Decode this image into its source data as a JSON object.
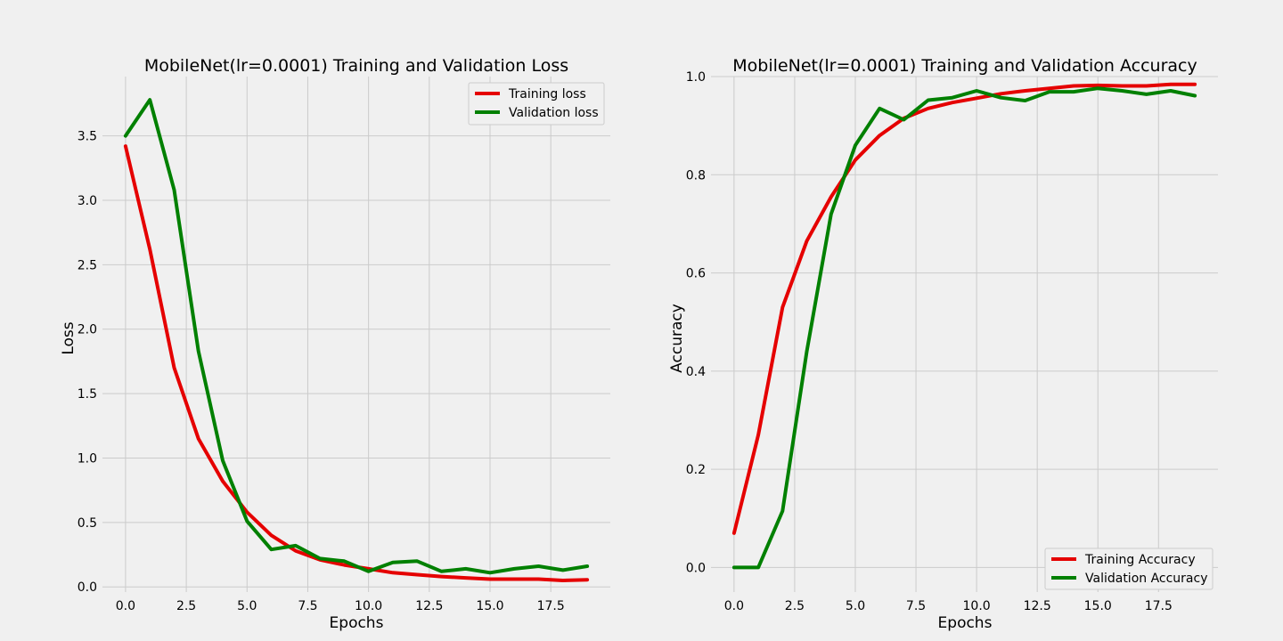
{
  "chart_data": [
    {
      "type": "line",
      "title": "MobileNet(lr=0.0001) Training and Validation Loss",
      "xlabel": "Epochs",
      "ylabel": "Loss",
      "xlim": [
        -0.95,
        19.95
      ],
      "ylim": [
        -0.04,
        3.96
      ],
      "xticks": [
        0,
        2.5,
        5,
        7.5,
        10,
        12.5,
        15,
        17.5
      ],
      "yticks": [
        0,
        0.5,
        1,
        1.5,
        2,
        2.5,
        3,
        3.5
      ],
      "xtick_labels": [
        "0.0",
        "2.5",
        "5.0",
        "7.5",
        "10.0",
        "12.5",
        "15.0",
        "17.5"
      ],
      "ytick_labels": [
        "0.0",
        "0.5",
        "1.0",
        "1.5",
        "2.0",
        "2.5",
        "3.0",
        "3.5"
      ],
      "grid": true,
      "legend_position": "top-right",
      "x": [
        0,
        1,
        2,
        3,
        4,
        5,
        6,
        7,
        8,
        9,
        10,
        11,
        12,
        13,
        14,
        15,
        16,
        17,
        18,
        19
      ],
      "series": [
        {
          "name": "Training loss",
          "color": "#e50000",
          "values": [
            3.42,
            2.62,
            1.7,
            1.15,
            0.82,
            0.58,
            0.4,
            0.28,
            0.21,
            0.17,
            0.14,
            0.11,
            0.095,
            0.08,
            0.07,
            0.06,
            0.06,
            0.06,
            0.05,
            0.055
          ]
        },
        {
          "name": "Validation loss",
          "color": "#008000",
          "values": [
            3.5,
            3.78,
            3.08,
            1.83,
            0.98,
            0.51,
            0.29,
            0.32,
            0.22,
            0.2,
            0.12,
            0.19,
            0.2,
            0.12,
            0.14,
            0.11,
            0.14,
            0.16,
            0.13,
            0.16
          ]
        }
      ]
    },
    {
      "type": "line",
      "title": "MobileNet(lr=0.0001) Training and Validation Accuracy",
      "xlabel": "Epochs",
      "ylabel": "Accuracy",
      "xlim": [
        -0.95,
        19.95
      ],
      "ylim": [
        -0.05,
        1.0
      ],
      "xticks": [
        0,
        2.5,
        5,
        7.5,
        10,
        12.5,
        15,
        17.5
      ],
      "yticks": [
        0,
        0.2,
        0.4,
        0.6,
        0.8,
        1.0
      ],
      "xtick_labels": [
        "0.0",
        "2.5",
        "5.0",
        "7.5",
        "10.0",
        "12.5",
        "15.0",
        "17.5"
      ],
      "ytick_labels": [
        "0.0",
        "0.2",
        "0.4",
        "0.6",
        "0.8",
        "1.0"
      ],
      "grid": true,
      "legend_position": "bottom-right",
      "x": [
        0,
        1,
        2,
        3,
        4,
        5,
        6,
        7,
        8,
        9,
        10,
        11,
        12,
        13,
        14,
        15,
        16,
        17,
        18,
        19
      ],
      "series": [
        {
          "name": "Training Accuracy",
          "color": "#e50000",
          "values": [
            0.07,
            0.27,
            0.53,
            0.665,
            0.755,
            0.83,
            0.88,
            0.915,
            0.935,
            0.947,
            0.956,
            0.965,
            0.971,
            0.976,
            0.981,
            0.982,
            0.981,
            0.981,
            0.984,
            0.984
          ]
        },
        {
          "name": "Validation Accuracy",
          "color": "#008000",
          "values": [
            0.0,
            0.0,
            0.115,
            0.44,
            0.72,
            0.86,
            0.935,
            0.912,
            0.952,
            0.957,
            0.971,
            0.957,
            0.951,
            0.969,
            0.969,
            0.976,
            0.971,
            0.964,
            0.971,
            0.961
          ]
        }
      ]
    }
  ]
}
